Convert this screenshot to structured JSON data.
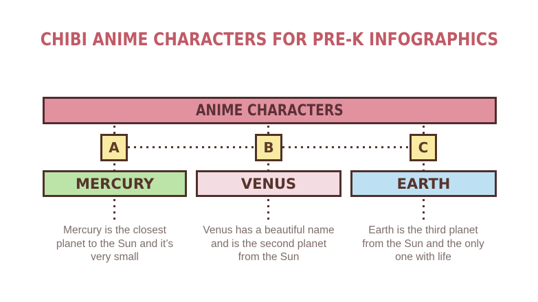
{
  "page": {
    "title": "CHIBI ANIME CHARACTERS FOR PRE-K INFOGRAPHICS",
    "header": "ANIME CHARACTERS"
  },
  "colors": {
    "background": "#ffffff",
    "title_red": "#c15a66",
    "header_pink": "#e2929f",
    "border_dark": "#4f2e2c",
    "letter_yellow": "#f9eba3",
    "mercury_green": "#bce4a8",
    "venus_pink": "#f3dce2",
    "earth_blue": "#bee0f3",
    "dark_text": "#57332b",
    "description_text": "#7d6d69",
    "dotted_line_brown": "#533630"
  },
  "columns": [
    {
      "letter": "A",
      "name": "MERCURY",
      "color": "#bce4a8",
      "description": "Mercury is the closest planet to the Sun and it’s very small"
    },
    {
      "letter": "B",
      "name": "VENUS",
      "color": "#f3dce2",
      "description": "Venus has a beautiful name and is the second planet from the Sun"
    },
    {
      "letter": "C",
      "name": "EARTH",
      "color": "#bee0f3",
      "description": "Earth is the third planet from the Sun and the only one with life"
    }
  ]
}
